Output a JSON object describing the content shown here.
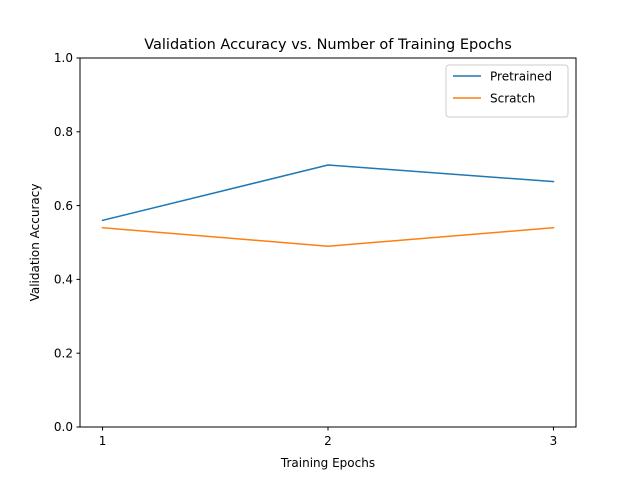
{
  "chart_data": {
    "type": "line",
    "title": "Validation Accuracy vs. Number of Training Epochs",
    "xlabel": "Training Epochs",
    "ylabel": "Validation Accuracy",
    "x": [
      1,
      2,
      3
    ],
    "x_ticks": [
      "1",
      "2",
      "3"
    ],
    "ylim": [
      0.0,
      1.0
    ],
    "y_ticks": [
      "0.0",
      "0.2",
      "0.4",
      "0.6",
      "0.8",
      "1.0"
    ],
    "legend_position": "top-right",
    "grid": false,
    "series": [
      {
        "name": "Pretrained",
        "color": "#1f77b4",
        "values": [
          0.56,
          0.71,
          0.665
        ]
      },
      {
        "name": "Scratch",
        "color": "#ff7f0e",
        "values": [
          0.54,
          0.49,
          0.54
        ]
      }
    ]
  }
}
